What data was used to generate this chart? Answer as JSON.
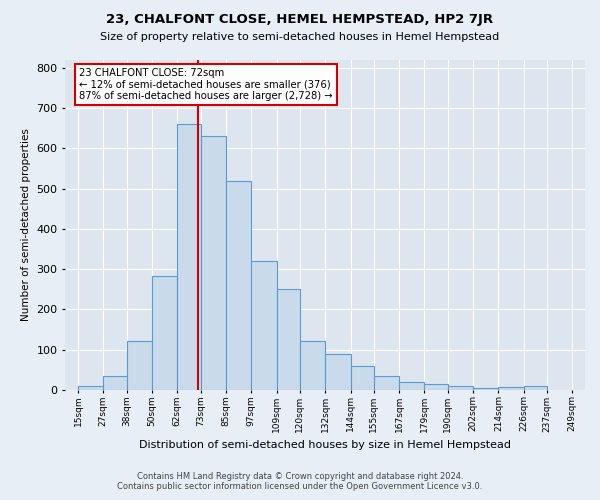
{
  "title": "23, CHALFONT CLOSE, HEMEL HEMPSTEAD, HP2 7JR",
  "subtitle": "Size of property relative to semi-detached houses in Hemel Hempstead",
  "xlabel": "Distribution of semi-detached houses by size in Hemel Hempstead",
  "ylabel": "Number of semi-detached properties",
  "footer_line1": "Contains HM Land Registry data © Crown copyright and database right 2024.",
  "footer_line2": "Contains public sector information licensed under the Open Government Licence v3.0.",
  "annotation_title": "23 CHALFONT CLOSE: 72sqm",
  "annotation_line2": "← 12% of semi-detached houses are smaller (376)",
  "annotation_line3": "87% of semi-detached houses are larger (2,728) →",
  "property_size": 72,
  "tick_labels": [
    "15sqm",
    "27sqm",
    "38sqm",
    "50sqm",
    "62sqm",
    "73sqm",
    "85sqm",
    "97sqm",
    "109sqm",
    "120sqm",
    "132sqm",
    "144sqm",
    "155sqm",
    "167sqm",
    "179sqm",
    "190sqm",
    "202sqm",
    "214sqm",
    "226sqm",
    "237sqm",
    "249sqm"
  ],
  "bar_values": [
    10,
    35,
    120,
    283,
    660,
    630,
    520,
    320,
    250,
    122,
    88,
    60,
    35,
    18,
    14,
    9,
    5,
    8,
    10
  ],
  "bar_color": "#c9daea",
  "bar_edge_color": "#5b9bd5",
  "vline_color": "#cc0000",
  "annotation_box_edgecolor": "#cc0000",
  "ylim": [
    0,
    820
  ],
  "yticks": [
    0,
    100,
    200,
    300,
    400,
    500,
    600,
    700,
    800
  ],
  "bg_color": "#dde6ef",
  "grid_color": "#ffffff",
  "fig_bg": "#e8eef5"
}
